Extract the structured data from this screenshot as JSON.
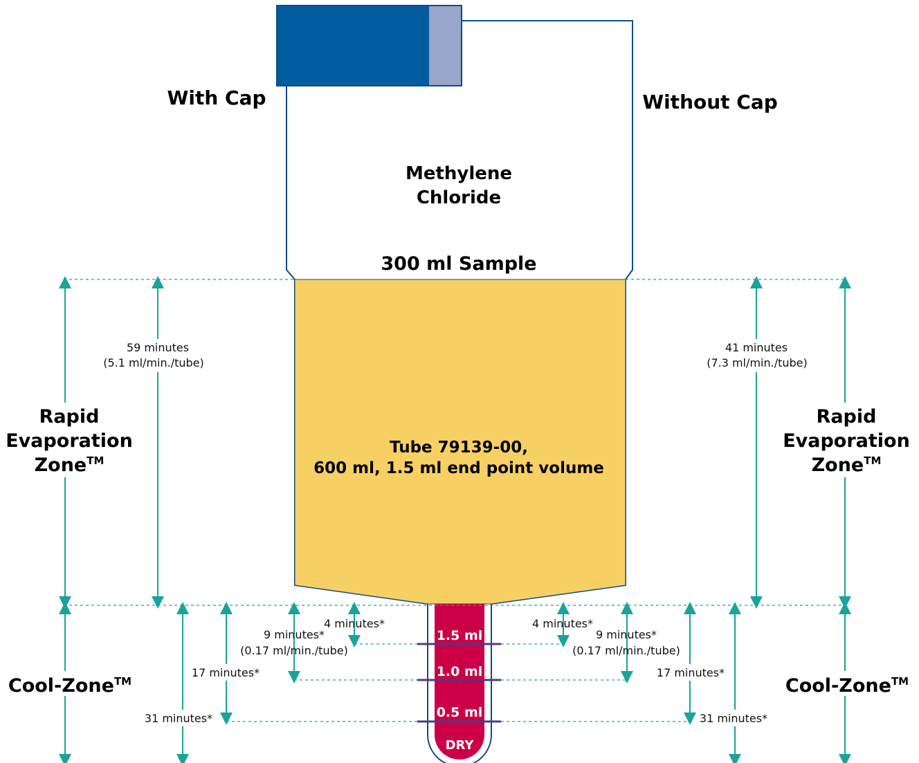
{
  "labels": {
    "with_cap": "With Cap",
    "without_cap": "Without Cap",
    "solvent_line1": "Methylene",
    "solvent_line2": "Chloride",
    "sample": "300 ml Sample",
    "tube_line1": "Tube 79139-00,",
    "tube_line2": "600 ml, 1.5 ml end point volume"
  },
  "volumes": {
    "v15": "1.5 ml",
    "v10": "1.0 ml",
    "v05": "0.5 ml",
    "dry": "DRY"
  },
  "zones": {
    "rapid_line1": "Rapid",
    "rapid_line2": "Evaporation",
    "rapid_line3": "Zone",
    "cool": "Cool-Zone",
    "tm": "TM"
  },
  "left_times": {
    "rapid_time": "59 minutes",
    "rapid_rate": "(5.1 ml/min./tube)",
    "t4": "4 minutes*",
    "t9": "9 minutes*",
    "t9_rate": "(0.17 ml/min./tube)",
    "t17": "17 minutes*",
    "t31": "31 minutes*"
  },
  "right_times": {
    "rapid_time": "41 minutes",
    "rapid_rate": "(7.3 ml/min./tube)",
    "t4": "4 minutes*",
    "t9": "9 minutes*",
    "t9_rate": "(0.17 ml/min./tube)",
    "t17": "17 minutes*",
    "t31": "31 minutes*"
  },
  "colors": {
    "cap_dark": "#005b9f",
    "cap_light": "#98a6cc",
    "tube_outline": "#0d4c8a",
    "liquid": "#f7d064",
    "tip_liquid": "#cb0046",
    "level_line": "#4b3a8a",
    "arrow": "#1aa39a"
  }
}
